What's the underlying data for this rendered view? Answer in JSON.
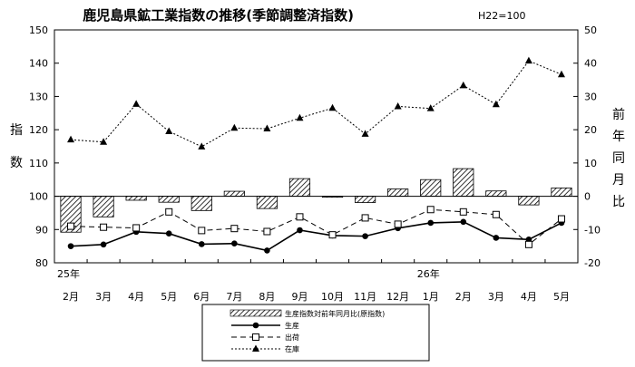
{
  "chart_data": {
    "type": "bar+line",
    "title": "鹿児島県鉱工業指数の推移(季節調整済指数)",
    "title_note": "H22=100",
    "ylabel_left": [
      "指",
      "数"
    ],
    "ylabel_right": [
      "前",
      "年",
      "同",
      "月",
      "比"
    ],
    "ylim_left": [
      80,
      150
    ],
    "yticks_left": [
      "80",
      "90",
      "100",
      "110",
      "120",
      "130",
      "140",
      "150"
    ],
    "ylim_right": [
      -20,
      50
    ],
    "yticks_right": [
      "-20",
      "-10",
      "0",
      "10",
      "20",
      "30",
      "40",
      "50"
    ],
    "year_labels": [
      {
        "index": 0,
        "label": "25年"
      },
      {
        "index": 11,
        "label": "26年"
      }
    ],
    "categories": [
      "2月",
      "3月",
      "4月",
      "5月",
      "6月",
      "7月",
      "8月",
      "9月",
      "10月",
      "11月",
      "12月",
      "1月",
      "2月",
      "3月",
      "4月",
      "5月"
    ],
    "bar_series": {
      "name": "生産指数対前年同月比(原指数)",
      "axis": "right",
      "values": [
        -10.8,
        -6.2,
        -1.2,
        -1.8,
        -4.3,
        1.5,
        -3.7,
        5.3,
        -0.3,
        -1.9,
        2.2,
        5.0,
        8.3,
        1.6,
        -2.6,
        2.5
      ]
    },
    "series": [
      {
        "name": "生産",
        "axis": "left",
        "marker": "dot",
        "dash": "solid",
        "values": [
          85,
          85.5,
          89.3,
          88.8,
          85.6,
          85.8,
          83.7,
          89.8,
          88.2,
          88,
          90.4,
          92,
          92.3,
          87.5,
          87,
          92
        ]
      },
      {
        "name": "出荷",
        "axis": "left",
        "marker": "square",
        "dash": "dashed",
        "values": [
          91,
          90.7,
          90.5,
          95.3,
          89.7,
          90.3,
          89.4,
          93.8,
          88.4,
          93.5,
          91.6,
          96,
          95.3,
          94.5,
          85.5,
          93.2
        ]
      },
      {
        "name": "在庫",
        "axis": "left",
        "marker": "triangle",
        "dash": "dotted",
        "values": [
          117,
          116.3,
          127.7,
          119.5,
          114.9,
          120.5,
          120.3,
          123.5,
          126.5,
          118.7,
          127,
          126.4,
          133.3,
          127.6,
          140.7,
          136.6
        ]
      }
    ],
    "grid": false,
    "legend_position": "bottom-center"
  }
}
